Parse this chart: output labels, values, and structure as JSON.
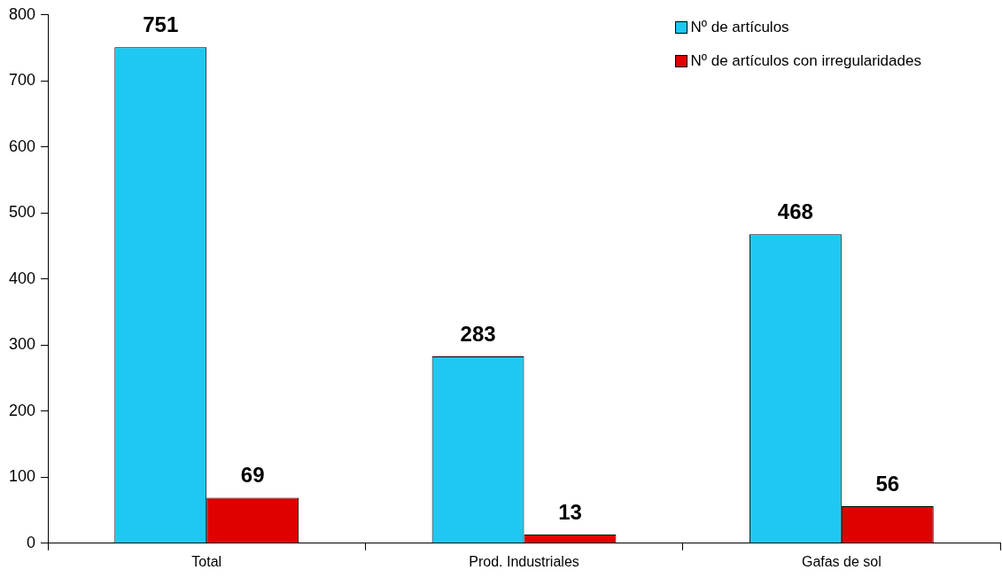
{
  "chart_data": {
    "type": "bar",
    "categories": [
      "Total",
      "Prod. Industriales",
      "Gafas de sol"
    ],
    "series": [
      {
        "name": "Nº de artículos",
        "color": "#1ec8f0",
        "values": [
          751,
          283,
          468
        ]
      },
      {
        "name": "Nº de artículos con irregularidades",
        "color": "#e00000",
        "values": [
          69,
          13,
          56
        ]
      }
    ],
    "ylim": [
      0,
      800
    ],
    "yticks": [
      0,
      100,
      200,
      300,
      400,
      500,
      600,
      700,
      800
    ],
    "grid": false,
    "legend": "top right",
    "data_labels": true
  }
}
